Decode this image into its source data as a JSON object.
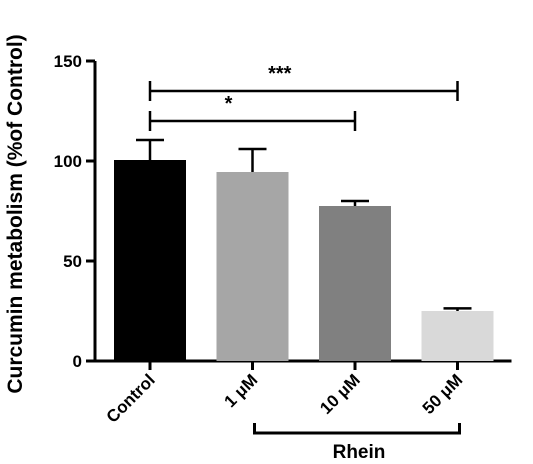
{
  "chart_data": {
    "type": "bar",
    "title": "",
    "xlabel": "",
    "ylabel": "Curcumin metabolism (%of Control)",
    "ylim": [
      0,
      150
    ],
    "yticks": [
      0,
      50,
      100,
      150
    ],
    "grid": false,
    "categories": [
      "Control",
      "1 μM",
      "10 μM",
      "50 μM"
    ],
    "values": [
      100.5,
      94.5,
      77.5,
      25
    ],
    "error_upper": [
      110.5,
      106,
      80,
      26.3
    ],
    "bar_colors": [
      "#000000",
      "#a6a6a6",
      "#808080",
      "#d9d9d9"
    ],
    "group": {
      "label": "Rhein",
      "categories": [
        "1 μM",
        "10 μM",
        "50 μM"
      ]
    },
    "significance": [
      {
        "from": "Control",
        "to": "10 μM",
        "label": "*",
        "y": 120
      },
      {
        "from": "Control",
        "to": "50 μM",
        "label": "***",
        "y": 135
      }
    ]
  }
}
